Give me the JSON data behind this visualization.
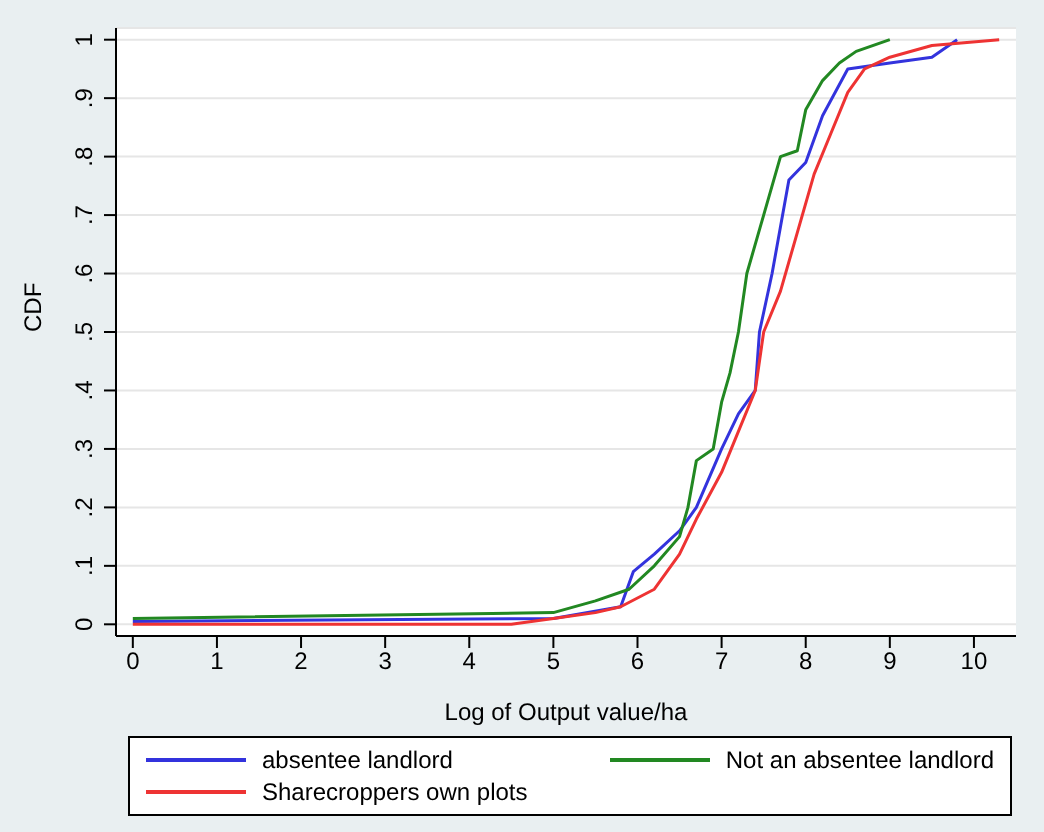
{
  "chart_data": {
    "type": "line",
    "xlabel": "Log of Output value/ha",
    "ylabel": "CDF",
    "xlim": [
      -0.2,
      10.5
    ],
    "xticks": [
      0,
      1,
      2,
      3,
      4,
      5,
      6,
      7,
      8,
      9,
      10
    ],
    "ylim": [
      -0.02,
      1.02
    ],
    "yticks": [
      {
        "value": 0,
        "label": "0"
      },
      {
        "value": 0.1,
        "label": ".1"
      },
      {
        "value": 0.2,
        "label": ".2"
      },
      {
        "value": 0.3,
        "label": ".3"
      },
      {
        "value": 0.4,
        "label": ".4"
      },
      {
        "value": 0.5,
        "label": ".5"
      },
      {
        "value": 0.6,
        "label": ".6"
      },
      {
        "value": 0.7,
        "label": ".7"
      },
      {
        "value": 0.8,
        "label": ".8"
      },
      {
        "value": 0.9,
        "label": ".9"
      },
      {
        "value": 1,
        "label": "1"
      }
    ],
    "grid": "y",
    "legend": "bottom",
    "marker": "none",
    "line_style": "solid",
    "series": [
      {
        "name": "absentee landlord",
        "color": "#3333dd",
        "x": [
          0,
          5,
          5.8,
          5.95,
          6.2,
          6.5,
          6.7,
          7.0,
          7.2,
          7.4,
          7.45,
          7.6,
          7.7,
          7.8,
          8.0,
          8.2,
          8.5,
          9.0,
          9.5,
          9.8
        ],
        "values": [
          0.005,
          0.01,
          0.03,
          0.09,
          0.12,
          0.16,
          0.2,
          0.3,
          0.36,
          0.4,
          0.5,
          0.6,
          0.68,
          0.76,
          0.79,
          0.87,
          0.95,
          0.96,
          0.97,
          1.0
        ]
      },
      {
        "name": "Not an absentee landlord",
        "color": "#228822",
        "x": [
          0,
          5,
          5.5,
          5.9,
          6.2,
          6.5,
          6.6,
          6.7,
          6.9,
          7.0,
          7.1,
          7.2,
          7.3,
          7.5,
          7.7,
          7.9,
          8.0,
          8.2,
          8.4,
          8.6,
          9.0
        ],
        "values": [
          0.01,
          0.02,
          0.04,
          0.06,
          0.1,
          0.15,
          0.2,
          0.28,
          0.3,
          0.38,
          0.43,
          0.5,
          0.6,
          0.7,
          0.8,
          0.81,
          0.88,
          0.93,
          0.96,
          0.98,
          1.0
        ]
      },
      {
        "name": "Sharecroppers own plots",
        "color": "#ee3333",
        "x": [
          0,
          4.5,
          5,
          5.5,
          5.8,
          6.2,
          6.5,
          6.7,
          7.0,
          7.2,
          7.4,
          7.5,
          7.7,
          7.9,
          8.1,
          8.3,
          8.5,
          8.7,
          9.0,
          9.5,
          10.3
        ],
        "values": [
          0.0,
          0.0,
          0.01,
          0.02,
          0.03,
          0.06,
          0.12,
          0.18,
          0.26,
          0.33,
          0.4,
          0.5,
          0.57,
          0.67,
          0.77,
          0.84,
          0.91,
          0.95,
          0.97,
          0.99,
          1.0
        ]
      }
    ]
  }
}
